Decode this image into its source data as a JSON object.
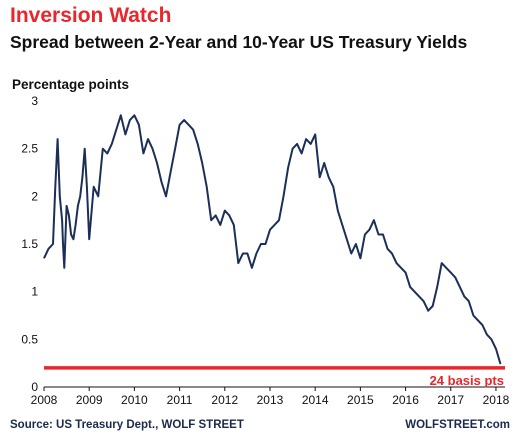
{
  "header": {
    "title": "Inversion Watch",
    "subtitle": "Spread between 2-Year and 10-Year US Treasury Yields"
  },
  "footer": {
    "source": "Source: US Treasury Dept., WOLF STREET",
    "brand": "WOLFSTREET.com"
  },
  "colors": {
    "line": "#1c2f57",
    "threshold": "#e8262b",
    "title": "#e8262b"
  },
  "chart_data": {
    "type": "line",
    "title": "Spread between 2-Year and 10-Year US Treasury Yields",
    "ylabel": "Percentage points",
    "xlabel": "",
    "ylim": [
      0,
      3
    ],
    "xlim": [
      2008.0,
      2018.2
    ],
    "y_ticks": [
      "0",
      "0.5",
      "1",
      "1.5",
      "2",
      "2.5",
      "3"
    ],
    "x_ticks": [
      "2008",
      "2009",
      "2010",
      "2011",
      "2012",
      "2013",
      "2014",
      "2015",
      "2016",
      "2017",
      "2018"
    ],
    "grid": false,
    "series": [
      {
        "x": [
          2008.0,
          2008.1,
          2008.2,
          2008.25,
          2008.3,
          2008.35,
          2008.4,
          2008.42,
          2008.45,
          2008.5,
          2008.55,
          2008.6,
          2008.65,
          2008.7,
          2008.75,
          2008.8,
          2008.85,
          2008.9,
          2008.95,
          2009.0,
          2009.1,
          2009.2,
          2009.3,
          2009.4,
          2009.5,
          2009.6,
          2009.7,
          2009.8,
          2009.9,
          2010.0,
          2010.1,
          2010.2,
          2010.3,
          2010.4,
          2010.5,
          2010.6,
          2010.7,
          2010.8,
          2010.9,
          2011.0,
          2011.1,
          2011.2,
          2011.3,
          2011.4,
          2011.5,
          2011.6,
          2011.7,
          2011.8,
          2011.9,
          2012.0,
          2012.1,
          2012.2,
          2012.3,
          2012.4,
          2012.5,
          2012.6,
          2012.7,
          2012.8,
          2012.9,
          2013.0,
          2013.1,
          2013.2,
          2013.3,
          2013.4,
          2013.5,
          2013.6,
          2013.7,
          2013.8,
          2013.9,
          2014.0,
          2014.1,
          2014.2,
          2014.3,
          2014.4,
          2014.5,
          2014.6,
          2014.7,
          2014.8,
          2014.9,
          2015.0,
          2015.1,
          2015.2,
          2015.3,
          2015.4,
          2015.5,
          2015.6,
          2015.7,
          2015.8,
          2015.9,
          2016.0,
          2016.1,
          2016.2,
          2016.3,
          2016.4,
          2016.5,
          2016.6,
          2016.7,
          2016.8,
          2016.9,
          2017.0,
          2017.1,
          2017.2,
          2017.3,
          2017.4,
          2017.5,
          2017.6,
          2017.7,
          2017.8,
          2017.9,
          2018.0,
          2018.1
        ],
        "values": [
          1.35,
          1.45,
          1.5,
          2.1,
          2.6,
          2.0,
          1.75,
          1.5,
          1.25,
          1.9,
          1.8,
          1.6,
          1.55,
          1.7,
          1.9,
          2.0,
          2.2,
          2.5,
          2.1,
          1.55,
          2.1,
          2.0,
          2.5,
          2.45,
          2.55,
          2.7,
          2.85,
          2.65,
          2.8,
          2.85,
          2.75,
          2.45,
          2.6,
          2.5,
          2.35,
          2.15,
          2.0,
          2.25,
          2.5,
          2.75,
          2.8,
          2.75,
          2.7,
          2.55,
          2.35,
          2.1,
          1.75,
          1.8,
          1.7,
          1.85,
          1.8,
          1.7,
          1.3,
          1.4,
          1.4,
          1.25,
          1.4,
          1.5,
          1.5,
          1.65,
          1.7,
          1.75,
          2.0,
          2.3,
          2.5,
          2.55,
          2.45,
          2.6,
          2.55,
          2.65,
          2.2,
          2.35,
          2.2,
          2.1,
          1.85,
          1.7,
          1.55,
          1.4,
          1.5,
          1.35,
          1.6,
          1.65,
          1.75,
          1.6,
          1.6,
          1.45,
          1.4,
          1.3,
          1.25,
          1.2,
          1.05,
          1.0,
          0.95,
          0.9,
          0.8,
          0.85,
          1.05,
          1.3,
          1.25,
          1.2,
          1.15,
          1.05,
          0.95,
          0.9,
          0.75,
          0.7,
          0.65,
          0.55,
          0.5,
          0.4,
          0.24
        ]
      }
    ],
    "threshold": {
      "value": 0.2,
      "label": "24 basis pts"
    }
  }
}
